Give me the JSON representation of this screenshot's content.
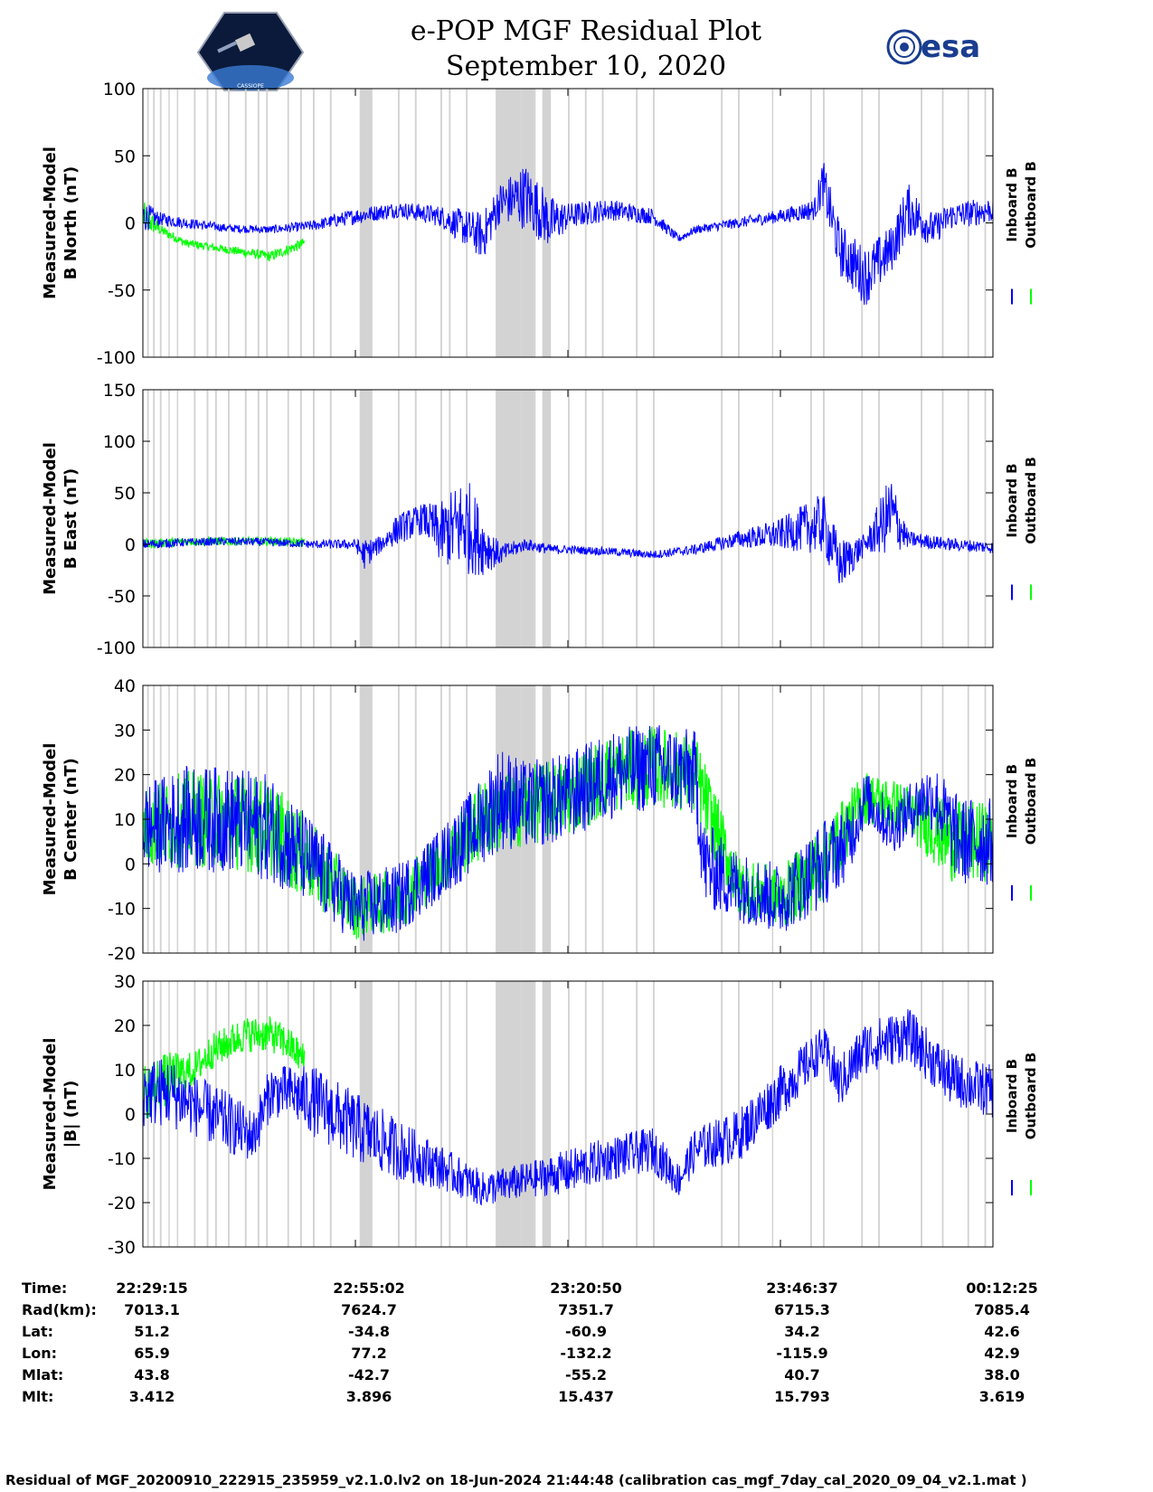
{
  "header": {
    "title": "e-POP MGF Residual Plot",
    "subtitle": "September 10, 2020",
    "logo_left_text": "CASSIOPE",
    "logo_right_text": "esa",
    "logo_right_color": "#1a3d8f"
  },
  "legend": {
    "inboard": "Inboard B",
    "outboard": "Outboard B",
    "inboard_color": "#0000ff",
    "outboard_color": "#00ff00"
  },
  "chart_data": [
    {
      "type": "line",
      "ylabel_line1": "Measured-Model",
      "ylabel_line2": "B North (nT)",
      "ylim": [
        -100,
        100
      ],
      "yticks": [
        -100,
        -50,
        0,
        50,
        100
      ],
      "series": [
        {
          "name": "Inboard B",
          "color": "#0000ff",
          "x": [
            0,
            0.02,
            0.05,
            0.1,
            0.15,
            0.2,
            0.25,
            0.3,
            0.35,
            0.4,
            0.42,
            0.45,
            0.48,
            0.5,
            0.55,
            0.6,
            0.63,
            0.65,
            0.7,
            0.75,
            0.79,
            0.8,
            0.82,
            0.85,
            0.88,
            0.9,
            0.93,
            0.95,
            1.0
          ],
          "y": [
            5,
            3,
            0,
            -4,
            -5,
            -2,
            5,
            10,
            5,
            -10,
            15,
            20,
            0,
            5,
            10,
            5,
            -12,
            -5,
            0,
            5,
            10,
            30,
            -20,
            -40,
            -20,
            10,
            -5,
            5,
            10
          ],
          "amp": [
            12,
            5,
            4,
            3,
            3,
            4,
            6,
            6,
            8,
            18,
            15,
            25,
            20,
            10,
            8,
            6,
            3,
            3,
            4,
            5,
            8,
            18,
            20,
            22,
            18,
            20,
            12,
            10,
            10
          ]
        },
        {
          "name": "Outboard B",
          "color": "#00ff00",
          "x": [
            0,
            0.02,
            0.05,
            0.1,
            0.15,
            0.19
          ],
          "y": [
            5,
            -5,
            -15,
            -20,
            -25,
            -15
          ],
          "amp": [
            12,
            4,
            3,
            3,
            4,
            4
          ]
        }
      ]
    },
    {
      "type": "line",
      "ylabel_line1": "Measured-Model",
      "ylabel_line2": "B East (nT)",
      "ylim": [
        -100,
        150
      ],
      "yticks": [
        -100,
        -50,
        0,
        50,
        100,
        150
      ],
      "series": [
        {
          "name": "Inboard B",
          "color": "#0000ff",
          "x": [
            0,
            0.05,
            0.1,
            0.15,
            0.2,
            0.25,
            0.26,
            0.28,
            0.3,
            0.33,
            0.35,
            0.38,
            0.4,
            0.42,
            0.45,
            0.48,
            0.5,
            0.55,
            0.6,
            0.65,
            0.7,
            0.75,
            0.8,
            0.82,
            0.85,
            0.88,
            0.9,
            0.95,
            1.0
          ],
          "y": [
            0,
            2,
            3,
            2,
            0,
            0,
            -10,
            0,
            15,
            25,
            10,
            20,
            0,
            -10,
            0,
            -5,
            -5,
            -7,
            -10,
            -5,
            5,
            10,
            20,
            -20,
            0,
            30,
            5,
            0,
            -3
          ],
          "amp": [
            5,
            4,
            4,
            4,
            4,
            5,
            15,
            8,
            15,
            15,
            30,
            50,
            30,
            10,
            6,
            5,
            4,
            4,
            4,
            5,
            8,
            15,
            30,
            25,
            10,
            40,
            8,
            6,
            6
          ]
        },
        {
          "name": "Outboard B",
          "color": "#00ff00",
          "x": [
            0,
            0.03,
            0.08,
            0.15,
            0.19
          ],
          "y": [
            0,
            2,
            3,
            3,
            2
          ],
          "amp": [
            5,
            4,
            4,
            4,
            4
          ]
        }
      ]
    },
    {
      "type": "line",
      "ylabel_line1": "Measured-Model",
      "ylabel_line2": "B Center (nT)",
      "ylim": [
        -20,
        40
      ],
      "yticks": [
        -20,
        -10,
        0,
        10,
        20,
        30,
        40
      ],
      "series": [
        {
          "name": "Inboard B",
          "color": "#0000ff",
          "x": [
            0,
            0.05,
            0.1,
            0.15,
            0.2,
            0.25,
            0.3,
            0.35,
            0.4,
            0.42,
            0.45,
            0.5,
            0.55,
            0.6,
            0.65,
            0.66,
            0.7,
            0.75,
            0.8,
            0.83,
            0.85,
            0.88,
            0.92,
            0.93,
            0.96,
            1.0
          ],
          "y": [
            8,
            10,
            10,
            8,
            0,
            -10,
            -8,
            0,
            10,
            15,
            13,
            15,
            20,
            22,
            20,
            0,
            -5,
            -8,
            0,
            5,
            15,
            8,
            15,
            15,
            5,
            5
          ],
          "amp": [
            10,
            12,
            12,
            12,
            10,
            8,
            8,
            8,
            10,
            12,
            10,
            10,
            10,
            10,
            10,
            10,
            8,
            8,
            10,
            8,
            6,
            6,
            7,
            8,
            10,
            10
          ]
        },
        {
          "name": "Outboard B",
          "color": "#00ff00",
          "x": [
            0,
            0.05,
            0.1,
            0.15,
            0.2,
            0.25,
            0.3,
            0.35,
            0.4,
            0.45,
            0.5,
            0.55,
            0.6,
            0.65,
            0.7,
            0.75,
            0.8,
            0.85,
            0.9,
            0.95,
            1.0
          ],
          "y": [
            8,
            10,
            10,
            8,
            0,
            -10,
            -8,
            0,
            10,
            13,
            15,
            20,
            22,
            20,
            -5,
            -8,
            0,
            15,
            12,
            5,
            5
          ],
          "amp": [
            9,
            11,
            11,
            11,
            9,
            7,
            7,
            7,
            9,
            9,
            9,
            9,
            9,
            9,
            7,
            7,
            9,
            6,
            6,
            9,
            9
          ]
        }
      ]
    },
    {
      "type": "line",
      "ylabel_line1": "Measured-Model",
      "ylabel_line2": "|B| (nT)",
      "ylim": [
        -30,
        30
      ],
      "yticks": [
        -30,
        -20,
        -10,
        0,
        10,
        20,
        30
      ],
      "series": [
        {
          "name": "Inboard B",
          "color": "#0000ff",
          "x": [
            0,
            0.03,
            0.06,
            0.1,
            0.13,
            0.15,
            0.17,
            0.2,
            0.25,
            0.3,
            0.35,
            0.4,
            0.45,
            0.5,
            0.55,
            0.6,
            0.63,
            0.65,
            0.7,
            0.75,
            0.8,
            0.82,
            0.85,
            0.9,
            0.95,
            1.0
          ],
          "y": [
            5,
            5,
            2,
            -2,
            -5,
            5,
            5,
            3,
            -3,
            -8,
            -12,
            -17,
            -15,
            -13,
            -10,
            -8,
            -15,
            -8,
            -5,
            5,
            15,
            7,
            15,
            18,
            8,
            5
          ],
          "amp": [
            8,
            8,
            7,
            7,
            6,
            6,
            6,
            8,
            8,
            7,
            5,
            4,
            4,
            5,
            5,
            5,
            4,
            5,
            6,
            6,
            5,
            6,
            6,
            6,
            6,
            6
          ]
        },
        {
          "name": "Outboard B",
          "color": "#00ff00",
          "x": [
            0,
            0.03,
            0.06,
            0.08,
            0.12,
            0.15,
            0.17,
            0.19
          ],
          "y": [
            5,
            8,
            10,
            14,
            18,
            18,
            16,
            12
          ],
          "amp": [
            7,
            6,
            4,
            4,
            4,
            4,
            4,
            4
          ]
        }
      ]
    }
  ],
  "gaps": [
    [
      0.005,
      0.007
    ],
    [
      0.012,
      0.014
    ],
    [
      0.02,
      0.022
    ],
    [
      0.03,
      0.031
    ],
    [
      0.04,
      0.041
    ],
    [
      0.06,
      0.062
    ],
    [
      0.075,
      0.077
    ],
    [
      0.085,
      0.087
    ],
    [
      0.1,
      0.102
    ],
    [
      0.12,
      0.122
    ],
    [
      0.135,
      0.137
    ],
    [
      0.145,
      0.147
    ],
    [
      0.17,
      0.172
    ],
    [
      0.185,
      0.187
    ],
    [
      0.2,
      0.202
    ],
    [
      0.22,
      0.222
    ],
    [
      0.255,
      0.27
    ],
    [
      0.3,
      0.302
    ],
    [
      0.32,
      0.322
    ],
    [
      0.35,
      0.352
    ],
    [
      0.36,
      0.362
    ],
    [
      0.38,
      0.382
    ],
    [
      0.415,
      0.445
    ],
    [
      0.445,
      0.46
    ],
    [
      0.46,
      0.462
    ],
    [
      0.47,
      0.46
    ],
    [
      0.47,
      0.48
    ],
    [
      0.5,
      0.502
    ],
    [
      0.52,
      0.522
    ],
    [
      0.54,
      0.542
    ],
    [
      0.58,
      0.582
    ],
    [
      0.6,
      0.602
    ],
    [
      0.68,
      0.682
    ],
    [
      0.7,
      0.702
    ],
    [
      0.74,
      0.741
    ],
    [
      0.785,
      0.787
    ],
    [
      0.8,
      0.802
    ],
    [
      0.845,
      0.847
    ],
    [
      0.865,
      0.867
    ],
    [
      0.915,
      0.917
    ],
    [
      0.94,
      0.942
    ],
    [
      0.97,
      0.972
    ],
    [
      0.99,
      0.992
    ]
  ],
  "orbit_table": {
    "labels": [
      "Time:",
      "Rad(km):",
      "Lat:",
      "Lon:",
      "Mlat:",
      "Mlt:"
    ],
    "columns": [
      [
        "22:29:15",
        "7013.1",
        "51.2",
        "65.9",
        "43.8",
        "3.412"
      ],
      [
        "22:55:02",
        "7624.7",
        "-34.8",
        "77.2",
        "-42.7",
        "3.896"
      ],
      [
        "23:20:50",
        "7351.7",
        "-60.9",
        "-132.2",
        "-55.2",
        "15.437"
      ],
      [
        "23:46:37",
        "6715.3",
        "34.2",
        "-115.9",
        "40.7",
        "15.793"
      ],
      [
        "00:12:25",
        "7085.4",
        "42.6",
        "42.9",
        "38.0",
        "3.619"
      ]
    ]
  },
  "footer": "Residual of MGF_20200910_222915_235959_v2.1.0.lv2 on 18-Jun-2024 21:44:48 (calibration cas_mgf_7day_cal_2020_09_04_v2.1.mat )"
}
